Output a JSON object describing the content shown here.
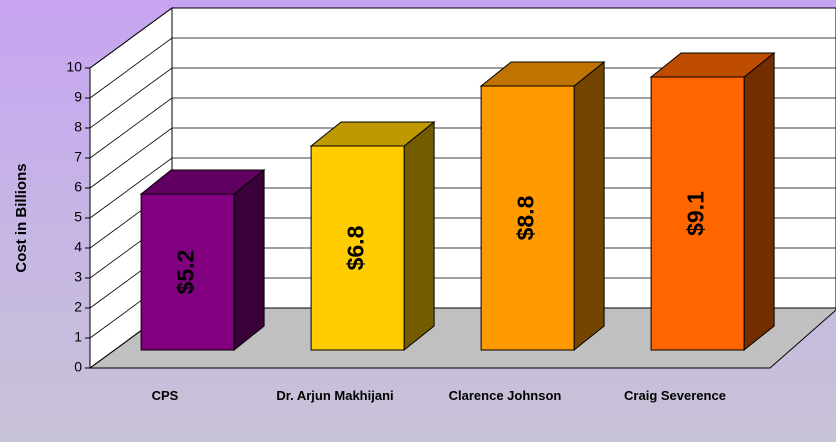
{
  "chart_data": {
    "type": "bar3d",
    "ylabel": "Cost in Billions",
    "categories": [
      "CPS",
      "Dr. Arjun Makhijani",
      "Clarence Johnson",
      "Craig Severence"
    ],
    "values": [
      5.2,
      6.8,
      8.8,
      9.1
    ],
    "value_labels": [
      "$5.2",
      "$6.8",
      "$8.8",
      "$9.1"
    ],
    "colors": [
      "#800080",
      "#ffcc00",
      "#ff9900",
      "#ff6600"
    ],
    "ylim": [
      0,
      10
    ],
    "yticks": [
      0,
      1,
      2,
      3,
      4,
      5,
      6,
      7,
      8,
      9,
      10
    ],
    "grid": true
  }
}
